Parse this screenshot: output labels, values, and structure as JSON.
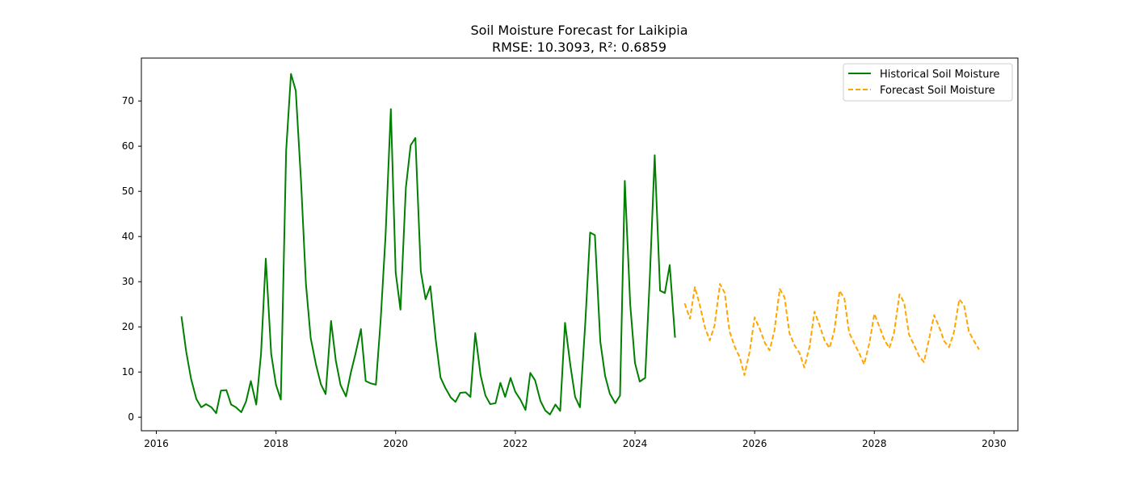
{
  "chart_data": {
    "type": "line",
    "title": "Soil Moisture Forecast for Laikipia",
    "subtitle": "RMSE: 10.3093, R²: 0.6859",
    "xlabel": "",
    "ylabel": "",
    "xlim": [
      2015.75,
      2030.4
    ],
    "ylim": [
      -3.0,
      79.5
    ],
    "x_ticks": [
      2016,
      2018,
      2020,
      2022,
      2024,
      2026,
      2028,
      2030
    ],
    "y_ticks": [
      0,
      10,
      20,
      30,
      40,
      50,
      60,
      70
    ],
    "grid": false,
    "legend_position": "top-right",
    "series": [
      {
        "name": "Historical Soil Moisture",
        "color": "#008000",
        "style": "solid",
        "x": [
          2016.42,
          2016.5,
          2016.58,
          2016.67,
          2016.75,
          2016.83,
          2016.92,
          2017.0,
          2017.08,
          2017.17,
          2017.25,
          2017.33,
          2017.42,
          2017.5,
          2017.58,
          2017.67,
          2017.75,
          2017.83,
          2017.92,
          2018.0,
          2018.08,
          2018.17,
          2018.25,
          2018.33,
          2018.42,
          2018.5,
          2018.58,
          2018.67,
          2018.75,
          2018.83,
          2018.92,
          2019.0,
          2019.08,
          2019.17,
          2019.25,
          2019.33,
          2019.42,
          2019.5,
          2019.58,
          2019.67,
          2019.75,
          2019.83,
          2019.92,
          2020.0,
          2020.08,
          2020.17,
          2020.25,
          2020.33,
          2020.42,
          2020.5,
          2020.58,
          2020.67,
          2020.75,
          2020.83,
          2020.92,
          2021.0,
          2021.08,
          2021.17,
          2021.25,
          2021.33,
          2021.42,
          2021.5,
          2021.58,
          2021.67,
          2021.75,
          2021.83,
          2021.92,
          2022.0,
          2022.08,
          2022.17,
          2022.25,
          2022.33,
          2022.42,
          2022.5,
          2022.58,
          2022.67,
          2022.75,
          2022.83,
          2022.92,
          2023.0,
          2023.08,
          2023.17,
          2023.25,
          2023.33,
          2023.42,
          2023.5,
          2023.58,
          2023.67,
          2023.75,
          2023.83,
          2023.92,
          2024.0,
          2024.08,
          2024.17,
          2024.25,
          2024.33,
          2024.42,
          2024.5,
          2024.58,
          2024.67
        ],
        "values": [
          22.3,
          14.5,
          8.5,
          4.0,
          2.2,
          2.9,
          2.2,
          0.9,
          5.9,
          6.0,
          2.8,
          2.2,
          1.1,
          3.5,
          8.0,
          2.8,
          14.0,
          35.1,
          14.0,
          7.2,
          3.9,
          59.0,
          76.0,
          72.3,
          52.0,
          29.5,
          17.5,
          11.5,
          7.3,
          5.1,
          21.3,
          12.5,
          7.1,
          4.6,
          9.8,
          14.1,
          19.5,
          8.0,
          7.5,
          7.2,
          21.5,
          40.0,
          68.2,
          32.0,
          23.8,
          50.8,
          60.2,
          61.8,
          32.3,
          26.1,
          29.0,
          17.1,
          8.8,
          6.5,
          4.4,
          3.4,
          5.4,
          5.5,
          4.5,
          18.6,
          9.3,
          4.8,
          2.9,
          3.1,
          7.6,
          4.5,
          8.7,
          5.6,
          4.0,
          1.6,
          9.8,
          8.2,
          3.6,
          1.5,
          0.6,
          2.8,
          1.4,
          20.9,
          11.5,
          4.5,
          2.2,
          20.9,
          40.9,
          40.3,
          16.7,
          9.2,
          5.2,
          3.1,
          4.8,
          52.3,
          25.0,
          12.0,
          7.9,
          8.7,
          31.5,
          58.0,
          28.0,
          27.5,
          33.7,
          17.6
        ]
      },
      {
        "name": "Forecast Soil Moisture",
        "color": "#ffa500",
        "style": "dashed",
        "x": [
          2024.83,
          2024.92,
          2025.0,
          2025.08,
          2025.17,
          2025.25,
          2025.33,
          2025.42,
          2025.5,
          2025.58,
          2025.67,
          2025.75,
          2025.83,
          2025.92,
          2026.0,
          2026.08,
          2026.17,
          2026.25,
          2026.33,
          2026.42,
          2026.5,
          2026.58,
          2026.67,
          2026.75,
          2026.83,
          2026.92,
          2027.0,
          2027.08,
          2027.17,
          2027.25,
          2027.33,
          2027.42,
          2027.5,
          2027.58,
          2027.67,
          2027.75,
          2027.83,
          2027.92,
          2028.0,
          2028.08,
          2028.17,
          2028.25,
          2028.33,
          2028.42,
          2028.5,
          2028.58,
          2028.67,
          2028.75,
          2028.83,
          2028.92,
          2029.0,
          2029.08,
          2029.17,
          2029.25,
          2029.33,
          2029.42,
          2029.5,
          2029.58,
          2029.67,
          2029.75
        ],
        "values": [
          25.2,
          21.8,
          28.8,
          25.0,
          19.8,
          17.0,
          20.3,
          29.5,
          27.5,
          19.0,
          15.5,
          13.3,
          9.3,
          14.7,
          22.1,
          19.7,
          16.5,
          14.8,
          19.1,
          28.4,
          26.5,
          18.7,
          15.8,
          14.2,
          11.0,
          15.8,
          23.4,
          20.5,
          17.0,
          15.3,
          19.0,
          28.0,
          26.3,
          18.7,
          16.2,
          14.1,
          11.7,
          16.5,
          22.9,
          20.2,
          17.1,
          15.3,
          18.7,
          27.2,
          25.3,
          18.3,
          15.8,
          13.5,
          12.2,
          17.6,
          22.6,
          20.1,
          16.8,
          15.5,
          18.8,
          26.1,
          24.8,
          19.0,
          16.8,
          15.0
        ]
      }
    ]
  }
}
